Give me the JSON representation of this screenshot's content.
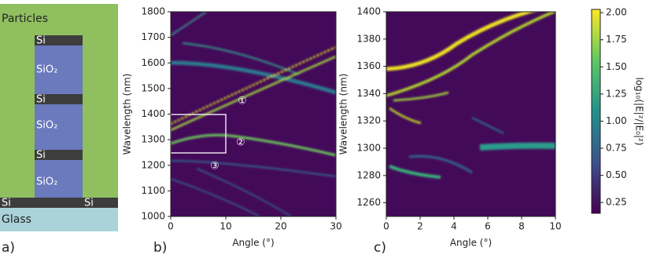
{
  "diagram": {
    "panel": "a)",
    "particles": "Particles",
    "glass": "Glass",
    "layers": {
      "si_top": "Si",
      "sio2_1": "SiO₂",
      "si_2": "Si",
      "sio2_2": "SiO₂",
      "si_3": "Si",
      "sio2_3": "SiO₂",
      "si_left": "Si",
      "si_right": "Si"
    }
  },
  "chart_data": [
    {
      "type": "heatmap",
      "panel": "b)",
      "xlabel": "Angle (°)",
      "ylabel": "Wavelength (nm)",
      "xlim": [
        0,
        30
      ],
      "ylim": [
        1000,
        1800
      ],
      "xticks": [
        0,
        10,
        20,
        30
      ],
      "yticks": [
        1000,
        1100,
        1200,
        1300,
        1400,
        1500,
        1600,
        1700,
        1800
      ],
      "annotations": [
        "①",
        "②",
        "③"
      ]
    },
    {
      "type": "heatmap",
      "panel": "c)",
      "xlabel": "Angle (°)",
      "ylabel": "Wavelength (nm)",
      "xlim": [
        0,
        10
      ],
      "ylim": [
        1250,
        1400
      ],
      "xticks": [
        0,
        2,
        4,
        6,
        8,
        10
      ],
      "yticks": [
        1260,
        1280,
        1300,
        1320,
        1340,
        1360,
        1380,
        1400
      ],
      "colorbar": {
        "label": "log₁₀(|E|²/|E₀|²)",
        "lim": [
          0.15,
          2.03
        ],
        "ticks": [
          0.25,
          {
            "value": 0.5,
            "label": "0.50"
          },
          0.75,
          {
            "value": 1.0,
            "label": "1.00"
          },
          1.25,
          {
            "value": 1.5,
            "label": "1.50"
          },
          1.75,
          {
            "value": 2.0,
            "label": "2.00"
          }
        ]
      }
    }
  ]
}
